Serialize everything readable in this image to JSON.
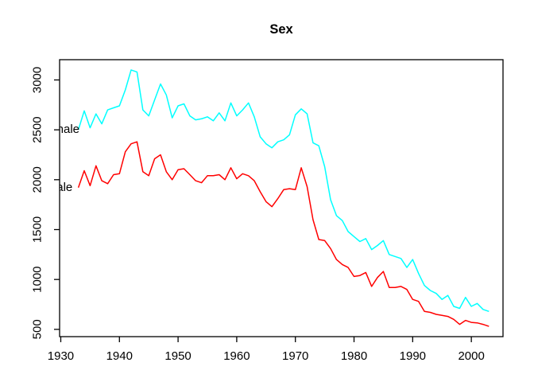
{
  "chart_data": {
    "type": "line",
    "title": "Sex",
    "xlabel": "",
    "ylabel": "",
    "grid": false,
    "legend_position": "clipped text labels at left edge of plot, at each series' first point",
    "xlim": [
      1929.8,
      2005.4
    ],
    "ylim": [
      427,
      3203
    ],
    "xticks": [
      1930,
      1940,
      1950,
      1960,
      1970,
      1980,
      1990,
      2000
    ],
    "yticks": [
      500,
      1000,
      1500,
      2000,
      2500,
      3000
    ],
    "x": [
      1933,
      1934,
      1935,
      1936,
      1937,
      1938,
      1939,
      1940,
      1941,
      1942,
      1943,
      1944,
      1945,
      1946,
      1947,
      1948,
      1949,
      1950,
      1951,
      1952,
      1953,
      1954,
      1955,
      1956,
      1957,
      1958,
      1959,
      1960,
      1961,
      1962,
      1963,
      1964,
      1965,
      1966,
      1967,
      1968,
      1969,
      1970,
      1971,
      1972,
      1973,
      1974,
      1975,
      1976,
      1977,
      1978,
      1979,
      1980,
      1981,
      1982,
      1983,
      1984,
      1985,
      1986,
      1987,
      1988,
      1989,
      1990,
      1991,
      1992,
      1993,
      1994,
      1995,
      1996,
      1997,
      1998,
      1999,
      2000,
      2001,
      2002,
      2003
    ],
    "series": [
      {
        "name": "Female",
        "color": "#00FFFF",
        "values": [
          2500,
          2690,
          2520,
          2660,
          2560,
          2700,
          2720,
          2740,
          2900,
          3100,
          3080,
          2700,
          2640,
          2800,
          2960,
          2850,
          2620,
          2740,
          2760,
          2640,
          2600,
          2610,
          2630,
          2590,
          2670,
          2590,
          2770,
          2640,
          2700,
          2770,
          2630,
          2430,
          2360,
          2320,
          2380,
          2400,
          2450,
          2650,
          2710,
          2660,
          2370,
          2340,
          2130,
          1800,
          1640,
          1590,
          1480,
          1430,
          1380,
          1410,
          1300,
          1340,
          1390,
          1250,
          1230,
          1210,
          1120,
          1200,
          1060,
          940,
          890,
          860,
          800,
          840,
          730,
          710,
          820,
          730,
          760,
          700,
          680
        ]
      },
      {
        "name": "Male",
        "color": "#FF0000",
        "values": [
          1920,
          2090,
          1940,
          2140,
          1990,
          1960,
          2050,
          2060,
          2280,
          2360,
          2380,
          2080,
          2040,
          2210,
          2250,
          2080,
          2000,
          2100,
          2110,
          2050,
          1990,
          1970,
          2040,
          2040,
          2050,
          2000,
          2120,
          2010,
          2060,
          2040,
          1990,
          1880,
          1780,
          1730,
          1810,
          1900,
          1910,
          1900,
          2120,
          1930,
          1600,
          1400,
          1390,
          1310,
          1200,
          1150,
          1120,
          1030,
          1040,
          1070,
          930,
          1020,
          1080,
          920,
          920,
          930,
          900,
          800,
          780,
          680,
          670,
          650,
          640,
          630,
          600,
          550,
          590,
          570,
          565,
          550,
          530
        ]
      }
    ],
    "annotations": [
      {
        "text": "Female",
        "x": 1929.8,
        "y": 2500,
        "clipped": true,
        "visible_fragment": "ale"
      },
      {
        "text": "Male",
        "x": 1929.8,
        "y": 1920,
        "clipped": true,
        "visible_fragment": "ale"
      }
    ]
  }
}
